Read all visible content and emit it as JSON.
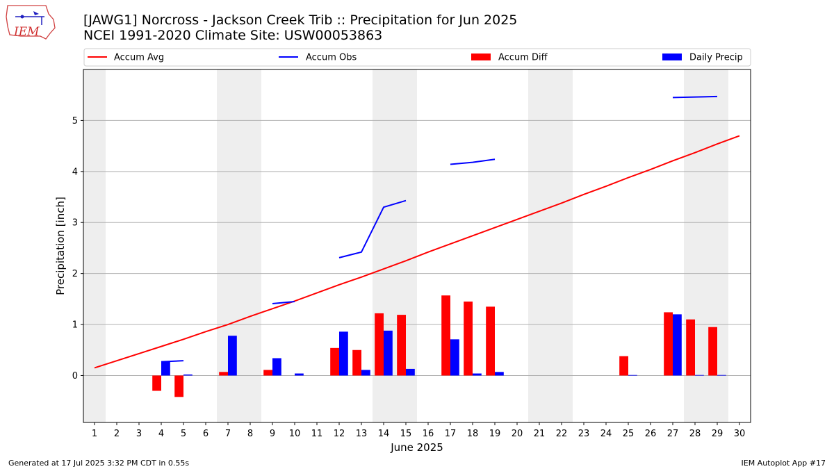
{
  "header": {
    "title_line1": "[JAWG1] Norcross - Jackson Creek Trib :: Precipitation for Jun 2025",
    "title_line2": "NCEI 1991-2020 Climate Site: USW00053863",
    "logo_text": "IEM"
  },
  "footer": {
    "left": "Generated at 17 Jul 2025 3:32 PM CDT in 0.55s",
    "right": "IEM Autoplot App #17"
  },
  "colors": {
    "accum_avg": "#ff0000",
    "accum_obs": "#0000ff",
    "accum_diff": "#ff0000",
    "daily_precip": "#0000ff",
    "weekend_shade": "#eeeeee",
    "grid": "#b0b0b0"
  },
  "chart_data": {
    "type": "bar",
    "xlabel": "June 2025",
    "ylabel": "Precipitation [inch]",
    "xlim": [
      0.5,
      30.5
    ],
    "ylim": [
      -0.92,
      6.0
    ],
    "yticks": [
      0,
      1,
      2,
      3,
      4,
      5
    ],
    "grid": "horizontal",
    "legend_placement": "top",
    "x": [
      1,
      2,
      3,
      4,
      5,
      6,
      7,
      8,
      9,
      10,
      11,
      12,
      13,
      14,
      15,
      16,
      17,
      18,
      19,
      20,
      21,
      22,
      23,
      24,
      25,
      26,
      27,
      28,
      29,
      30
    ],
    "weekend_shading": [
      [
        1,
        1
      ],
      [
        7,
        8
      ],
      [
        14,
        15
      ],
      [
        21,
        22
      ],
      [
        28,
        29
      ]
    ],
    "series": [
      {
        "name": "Accum Avg",
        "kind": "line",
        "values": [
          0.15,
          0.29,
          0.43,
          0.57,
          0.71,
          0.86,
          1.0,
          1.16,
          1.31,
          1.46,
          1.62,
          1.78,
          1.93,
          2.09,
          2.25,
          2.42,
          2.58,
          2.74,
          2.9,
          3.06,
          3.22,
          3.38,
          3.55,
          3.71,
          3.88,
          4.04,
          4.21,
          4.37,
          4.54,
          4.7
        ]
      },
      {
        "name": "Accum Obs",
        "kind": "line",
        "segments": [
          {
            "x": [
              4,
              5
            ],
            "values": [
              0.27,
              0.29
            ]
          },
          {
            "x": [
              9,
              10
            ],
            "values": [
              1.41,
              1.45
            ]
          },
          {
            "x": [
              12,
              13,
              14,
              15
            ],
            "values": [
              2.31,
              2.42,
              3.3,
              3.43
            ]
          },
          {
            "x": [
              17,
              18,
              19
            ],
            "values": [
              4.14,
              4.18,
              4.24
            ]
          },
          {
            "x": [
              27,
              29
            ],
            "values": [
              5.45,
              5.47
            ]
          }
        ]
      },
      {
        "name": "Accum Diff",
        "kind": "bar",
        "x": [
          4,
          5,
          7,
          9,
          12,
          13,
          14,
          15,
          17,
          18,
          19,
          25,
          27,
          28,
          29
        ],
        "values": [
          -0.3,
          -0.42,
          0.07,
          0.11,
          0.54,
          0.5,
          1.22,
          1.19,
          1.57,
          1.45,
          1.35,
          0.38,
          1.24,
          1.1,
          0.95
        ]
      },
      {
        "name": "Daily Precip",
        "kind": "bar",
        "x": [
          4,
          5,
          7,
          9,
          10,
          12,
          13,
          14,
          15,
          17,
          18,
          19,
          25,
          27,
          28,
          29
        ],
        "values": [
          0.27,
          0.02,
          0.78,
          0.34,
          0.04,
          0.86,
          0.11,
          0.88,
          0.13,
          0.71,
          0.04,
          0.07,
          0.01,
          1.2,
          0.01,
          0.01
        ]
      }
    ]
  }
}
